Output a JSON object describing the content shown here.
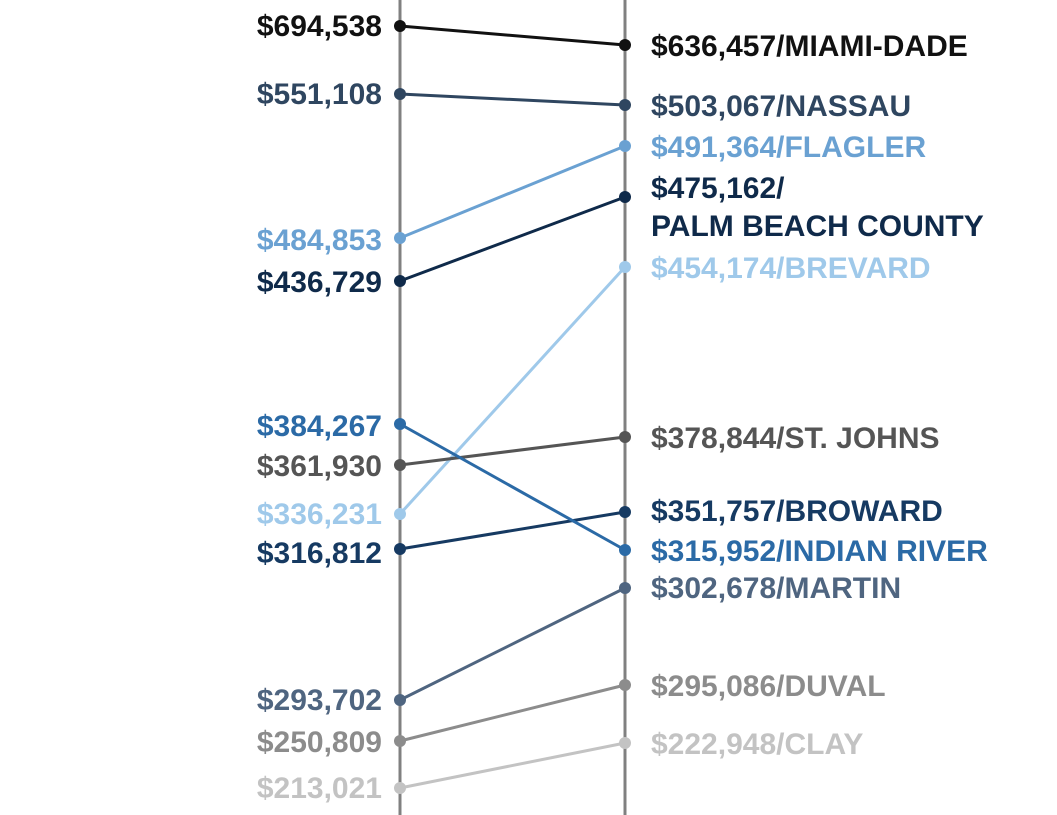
{
  "chart_data": {
    "type": "slope",
    "series": [
      {
        "name": "MIAMI-DADE",
        "left_label": "$694,538",
        "right_label": "$636,457/MIAMI-DADE",
        "values": [
          694538,
          636457
        ],
        "color": "#111111"
      },
      {
        "name": "NASSAU",
        "left_label": "$551,108",
        "right_label": "$503,067/NASSAU",
        "values": [
          551108,
          503067
        ],
        "color": "#2f4660"
      },
      {
        "name": "FLAGLER",
        "left_label": "$484,853",
        "right_label": "$491,364/FLAGLER",
        "values": [
          484853,
          491364
        ],
        "color": "#6aa1d2"
      },
      {
        "name": "PALM BEACH COUNTY",
        "left_label": "$436,729",
        "right_label": "$475,162/",
        "right_label_2": "PALM BEACH COUNTY",
        "values": [
          436729,
          475162
        ],
        "color": "#0f2a4a"
      },
      {
        "name": "BREVARD",
        "left_label": "$336,231",
        "right_label": "$454,174/BREVARD",
        "values": [
          336231,
          454174
        ],
        "color": "#9fc9ea"
      },
      {
        "name": "ST. JOHNS",
        "left_label": "$361,930",
        "right_label": "$378,844/ST. JOHNS",
        "values": [
          361930,
          378844
        ],
        "color": "#555555"
      },
      {
        "name": "BROWARD",
        "left_label": "$316,812",
        "right_label": "$351,757/BROWARD",
        "values": [
          316812,
          351757
        ],
        "color": "#163a62"
      },
      {
        "name": "INDIAN RIVER",
        "left_label": "$384,267",
        "right_label": "$315,952/INDIAN RIVER",
        "values": [
          384267,
          315952
        ],
        "color": "#2b6aa6"
      },
      {
        "name": "MARTIN",
        "left_label": "$293,702",
        "right_label": "$302,678/MARTIN",
        "values": [
          293702,
          302678
        ],
        "color": "#4f6580"
      },
      {
        "name": "DUVAL",
        "left_label": "$250,809",
        "right_label": "$295,086/DUVAL",
        "values": [
          250809,
          295086
        ],
        "color": "#8c8c8c"
      },
      {
        "name": "CLAY",
        "left_label": "$213,021",
        "right_label": "$222,948/CLAY",
        "values": [
          213021,
          222948
        ],
        "color": "#c3c3c3"
      }
    ],
    "axis_color": "#808080"
  }
}
